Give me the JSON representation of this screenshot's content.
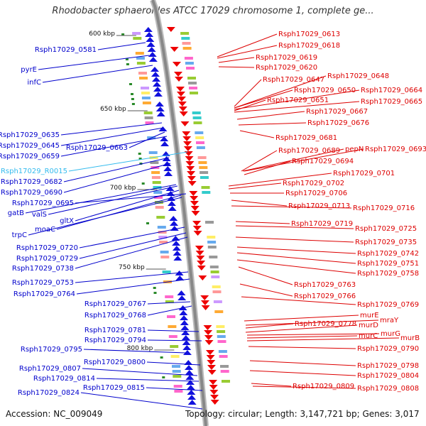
{
  "title": "Rhodobacter sphaeroides ATCC 17029 chromosome 1, complete ge...",
  "accession": "Accession: NC_009049",
  "topology": "Topology: circular; Length: 3,147,721 bp; Genes: 3,017",
  "colors": {
    "left_label": "#0000cc",
    "left_rna": "#33bbee",
    "right_label": "#dd0000",
    "forward_strand": "#1111dd",
    "reverse_strand": "#ee0000",
    "backbone": "#888888",
    "tick": "#2a8a2a"
  },
  "scale_ticks": [
    {
      "label": "600 kbp"
    },
    {
      "label": "650 kbp"
    },
    {
      "label": "700 kbp"
    },
    {
      "label": "750 kbp"
    },
    {
      "label": "800 kbp"
    }
  ],
  "left_genes": [
    {
      "label": "Rsph17029_0581"
    },
    {
      "label": "pyrE"
    },
    {
      "label": "infC"
    },
    {
      "label": "Rsph17029_0635"
    },
    {
      "label": "Rsph17029_0645"
    },
    {
      "label": "Rsph17029_0663"
    },
    {
      "label": "Rsph17029_0659"
    },
    {
      "label": "Rsph17029_R0015",
      "rna": true
    },
    {
      "label": "Rsph17029_0682"
    },
    {
      "label": "Rsph17029_0690"
    },
    {
      "label": "Rsph17029_0695"
    },
    {
      "label": "gatB"
    },
    {
      "label": "valS"
    },
    {
      "label": "gltX"
    },
    {
      "label": "moaC"
    },
    {
      "label": "trpC"
    },
    {
      "label": "Rsph17029_0720"
    },
    {
      "label": "Rsph17029_0729"
    },
    {
      "label": "Rsph17029_0738"
    },
    {
      "label": "Rsph17029_0753"
    },
    {
      "label": "Rsph17029_0764"
    },
    {
      "label": "Rsph17029_0767"
    },
    {
      "label": "Rsph17029_0768"
    },
    {
      "label": "Rsph17029_0781"
    },
    {
      "label": "Rsph17029_0794"
    },
    {
      "label": "Rsph17029_0795"
    },
    {
      "label": "Rsph17029_0800"
    },
    {
      "label": "Rsph17029_0807"
    },
    {
      "label": "Rsph17029_0814"
    },
    {
      "label": "Rsph17029_0815"
    },
    {
      "label": "Rsph17029_0824"
    }
  ],
  "right_genes": [
    {
      "label": "Rsph17029_0613"
    },
    {
      "label": "Rsph17029_0618"
    },
    {
      "label": "Rsph17029_0619"
    },
    {
      "label": "Rsph17029_0620"
    },
    {
      "label": "Rsph17029_0648"
    },
    {
      "label": "Rsph17029_0647"
    },
    {
      "label": "Rsph17029_0650"
    },
    {
      "label": "Rsph17029_0664"
    },
    {
      "label": "Rsph17029_0651"
    },
    {
      "label": "Rsph17029_0665"
    },
    {
      "label": "Rsph17029_0667"
    },
    {
      "label": "Rsph17029_0676"
    },
    {
      "label": "Rsph17029_0681"
    },
    {
      "label": "Rsph17029_0689"
    },
    {
      "label": "pepN"
    },
    {
      "label": "Rsph17029_0693"
    },
    {
      "label": "Rsph17029_0694"
    },
    {
      "label": "Rsph17029_0701"
    },
    {
      "label": "Rsph17029_0702"
    },
    {
      "label": "Rsph17029_0706"
    },
    {
      "label": "Rsph17029_0713"
    },
    {
      "label": "Rsph17029_0716"
    },
    {
      "label": "Rsph17029_0719"
    },
    {
      "label": "Rsph17029_0725"
    },
    {
      "label": "Rsph17029_0735"
    },
    {
      "label": "Rsph17029_0742"
    },
    {
      "label": "Rsph17029_0751"
    },
    {
      "label": "Rsph17029_0758"
    },
    {
      "label": "Rsph17029_0763"
    },
    {
      "label": "Rsph17029_0766"
    },
    {
      "label": "Rsph17029_0769"
    },
    {
      "label": "murE"
    },
    {
      "label": "mraY"
    },
    {
      "label": "Rsph17029_0778"
    },
    {
      "label": "murD"
    },
    {
      "label": "murG"
    },
    {
      "label": "murC"
    },
    {
      "label": "murB"
    },
    {
      "label": "Rsph17029_0790"
    },
    {
      "label": "Rsph17029_0798"
    },
    {
      "label": "Rsph17029_0804"
    },
    {
      "label": "Rsph17029_0809"
    },
    {
      "label": "Rsph17029_0808"
    }
  ]
}
